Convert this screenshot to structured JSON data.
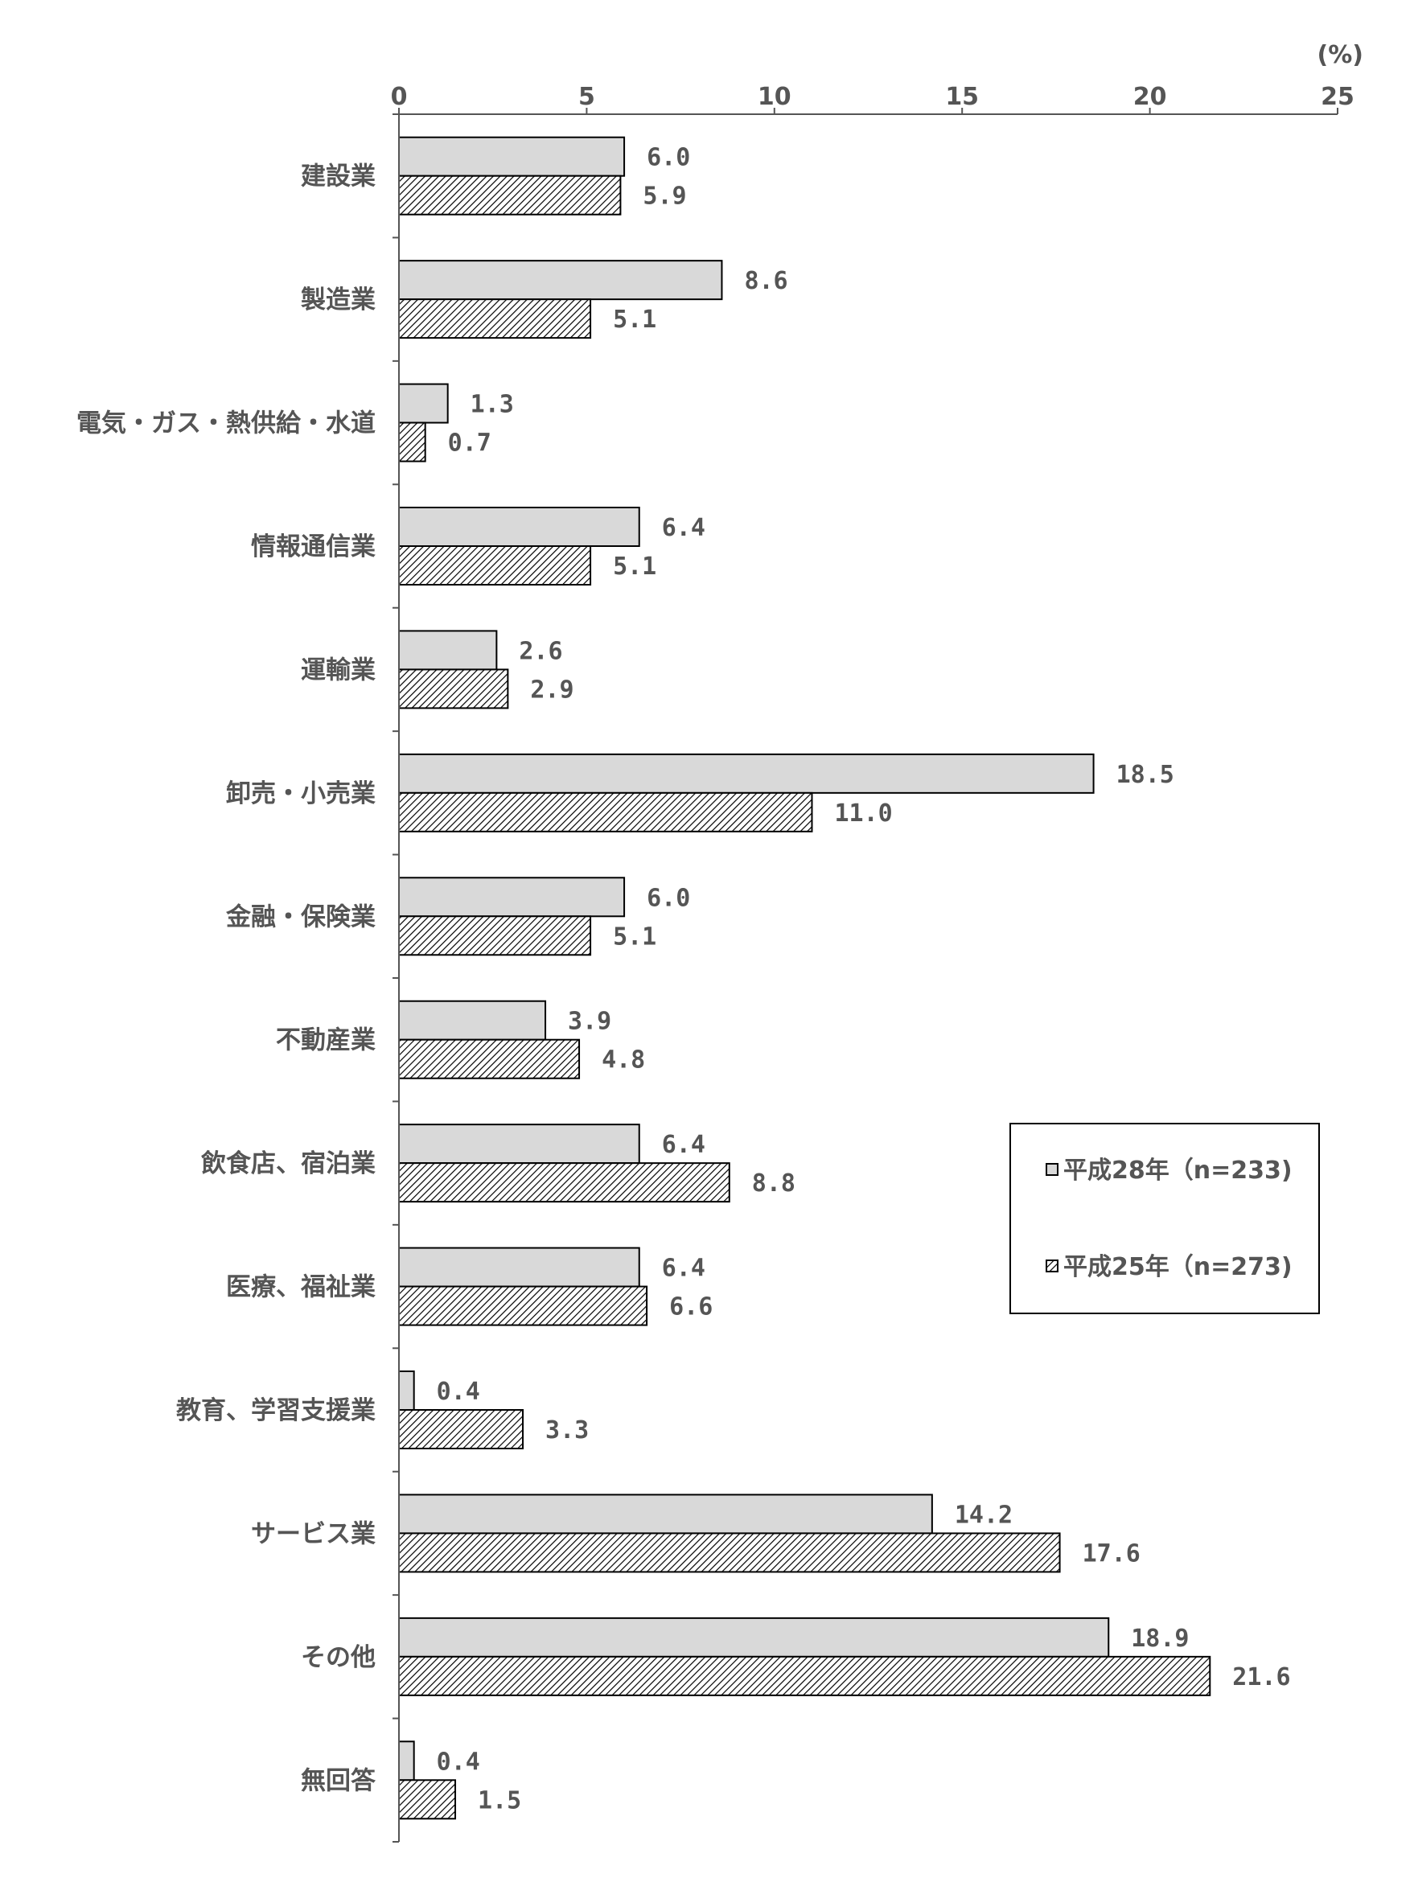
{
  "chart_data": {
    "type": "bar",
    "orientation": "horizontal",
    "unit_label": "(%)",
    "xlim": [
      0,
      25
    ],
    "ticks": [
      0,
      5,
      10,
      15,
      20,
      25
    ],
    "grid": false,
    "legend_placement": "center-right",
    "categories": [
      "建設業",
      "製造業",
      "電気・ガス・熱供給・水道",
      "情報通信業",
      "運輸業",
      "卸売・小売業",
      "金融・保険業",
      "不動産業",
      "飲食店、宿泊業",
      "医療、福祉業",
      "教育、学習支援業",
      "サービス業",
      "その他",
      "無回答"
    ],
    "series": [
      {
        "name": "平成28年（n=233)",
        "fill": "solid-gray",
        "values": [
          6.0,
          8.6,
          1.3,
          6.4,
          2.6,
          18.5,
          6.0,
          3.9,
          6.4,
          6.4,
          0.4,
          14.2,
          18.9,
          0.4
        ],
        "labels": [
          "6.0",
          "8.6",
          "1.3",
          "6.4",
          "2.6",
          "18.5",
          "6.0",
          "3.9",
          "6.4",
          "6.4",
          "0.4",
          "14.2",
          "18.9",
          "0.4"
        ]
      },
      {
        "name": "平成25年（n=273)",
        "fill": "hatched",
        "values": [
          5.9,
          5.1,
          0.7,
          5.1,
          2.9,
          11.0,
          5.1,
          4.8,
          8.8,
          6.6,
          3.3,
          17.6,
          21.6,
          1.5
        ],
        "labels": [
          "5.9",
          "5.1",
          "0.7",
          "5.1",
          "2.9",
          "11.0",
          "5.1",
          "4.8",
          "8.8",
          "6.6",
          "3.3",
          "17.6",
          "21.6",
          "1.5"
        ]
      }
    ]
  },
  "colors": {
    "bar_solid": "#d9d9d9",
    "bar_outline": "#000000",
    "text": "#555555",
    "axis": "#555555"
  }
}
